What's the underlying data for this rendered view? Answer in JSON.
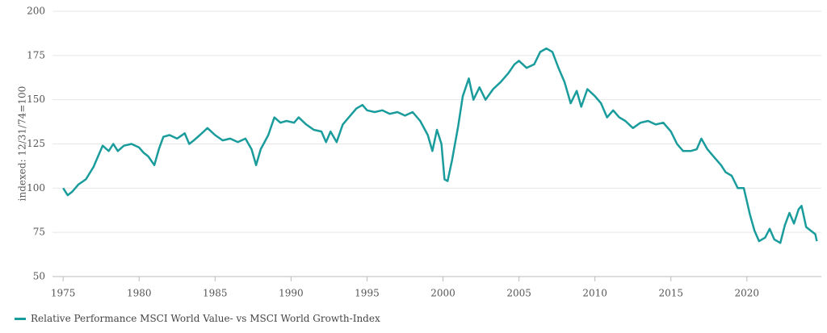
{
  "chart_data": {
    "type": "line",
    "y_label": "indexed: 12/31/74=100",
    "xlim": [
      1974.3,
      2024.9
    ],
    "xticks": [
      1975,
      1980,
      1985,
      1990,
      1995,
      2000,
      2005,
      2010,
      2015,
      2020
    ],
    "ylim": [
      50,
      200
    ],
    "yticks": [
      50,
      75,
      100,
      125,
      150,
      175,
      200
    ],
    "grid": true,
    "series": [
      {
        "name": "Relative Performance MSCI World Value- vs MSCI World Growth-Index",
        "color": "#1a9c9c",
        "x": [
          1975.0,
          1975.3,
          1975.6,
          1976.0,
          1976.5,
          1977.0,
          1977.3,
          1977.6,
          1978.0,
          1978.3,
          1978.6,
          1979.0,
          1979.5,
          1980.0,
          1980.3,
          1980.6,
          1981.0,
          1981.3,
          1981.6,
          1982.0,
          1982.5,
          1983.0,
          1983.3,
          1983.6,
          1984.0,
          1984.5,
          1985.0,
          1985.5,
          1986.0,
          1986.5,
          1987.0,
          1987.4,
          1987.7,
          1988.0,
          1988.5,
          1988.9,
          1989.3,
          1989.7,
          1990.2,
          1990.5,
          1991.0,
          1991.5,
          1992.0,
          1992.3,
          1992.6,
          1993.0,
          1993.4,
          1993.8,
          1994.3,
          1994.7,
          1995.0,
          1995.5,
          1996.0,
          1996.5,
          1997.0,
          1997.5,
          1998.0,
          1998.5,
          1999.0,
          1999.3,
          1999.6,
          1999.9,
          2000.1,
          2000.3,
          2000.6,
          2001.0,
          2001.3,
          2001.7,
          2002.0,
          2002.4,
          2002.8,
          2003.3,
          2003.8,
          2004.3,
          2004.7,
          2005.0,
          2005.5,
          2006.0,
          2006.4,
          2006.8,
          2007.2,
          2007.6,
          2008.0,
          2008.4,
          2008.8,
          2009.1,
          2009.5,
          2010.0,
          2010.4,
          2010.8,
          2011.2,
          2011.6,
          2012.0,
          2012.5,
          2013.0,
          2013.5,
          2014.0,
          2014.5,
          2015.0,
          2015.4,
          2015.8,
          2016.3,
          2016.7,
          2017.0,
          2017.4,
          2017.8,
          2018.3,
          2018.6,
          2019.0,
          2019.4,
          2019.8,
          2020.2,
          2020.5,
          2020.8,
          2021.2,
          2021.5,
          2021.8,
          2022.2,
          2022.5,
          2022.8,
          2023.1,
          2023.4,
          2023.6,
          2023.9,
          2024.2,
          2024.5,
          2024.6
        ],
        "values": [
          100,
          96,
          98,
          102,
          105,
          112,
          118,
          124,
          121,
          125,
          121,
          124,
          125,
          123,
          120,
          118,
          113,
          122,
          129,
          130,
          128,
          131,
          125,
          127,
          130,
          134,
          130,
          127,
          128,
          126,
          128,
          122,
          113,
          122,
          130,
          140,
          137,
          138,
          137,
          140,
          136,
          133,
          132,
          126,
          132,
          126,
          136,
          140,
          145,
          147,
          144,
          143,
          144,
          142,
          143,
          141,
          143,
          138,
          130,
          121,
          133,
          125,
          105,
          104,
          116,
          135,
          152,
          162,
          150,
          157,
          150,
          156,
          160,
          165,
          170,
          172,
          168,
          170,
          177,
          179,
          177,
          168,
          160,
          148,
          155,
          146,
          156,
          152,
          148,
          140,
          144,
          140,
          138,
          134,
          137,
          138,
          136,
          137,
          132,
          125,
          121,
          121,
          122,
          128,
          122,
          118,
          113,
          109,
          107,
          100,
          100,
          85,
          76,
          70,
          72,
          77,
          71,
          69,
          79,
          86,
          80,
          88,
          90,
          78,
          76,
          74,
          70
        ]
      }
    ]
  }
}
